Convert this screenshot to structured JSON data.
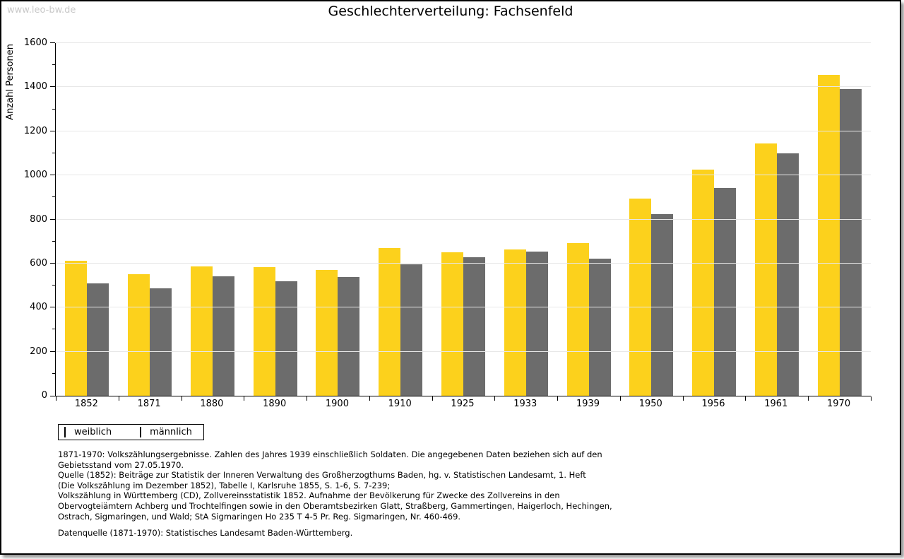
{
  "watermark": "www.leo-bw.de",
  "header": {
    "title": "Geschlechterverteilung: Fachsenfeld"
  },
  "chart_data": {
    "type": "bar",
    "title": "Geschlechterverteilung: Fachsenfeld",
    "xlabel": "",
    "ylabel": "Anzahl Personen",
    "categories": [
      "1852",
      "1871",
      "1880",
      "1890",
      "1900",
      "1910",
      "1925",
      "1933",
      "1939",
      "1950",
      "1956",
      "1961",
      "1970"
    ],
    "series": [
      {
        "name": "weiblich",
        "color": "#FCD11C",
        "values": [
          611,
          550,
          587,
          583,
          570,
          670,
          651,
          663,
          692,
          896,
          1026,
          1146,
          1456
        ]
      },
      {
        "name": "männlich",
        "color": "#6C6C6C",
        "values": [
          510,
          488,
          542,
          520,
          539,
          597,
          629,
          654,
          623,
          824,
          944,
          1101,
          1390
        ]
      }
    ],
    "ylim": [
      0,
      1600
    ],
    "ytick_major_step": 200,
    "ytick_minor_step": 100,
    "grid": "horizontal-major",
    "legend_position": "bottom-left"
  },
  "legend": {
    "items": [
      {
        "label": "weiblich",
        "color": "#FCD11C"
      },
      {
        "label": "männlich",
        "color": "#6C6C6C"
      }
    ]
  },
  "footer": {
    "lines": [
      "1871-1970: Volkszählungsergebnisse. Zahlen des Jahres 1939 einschließlich Soldaten. Die angegebenen Daten beziehen sich auf den",
      "Gebietsstand vom 27.05.1970.",
      "Quelle (1852): Beiträge zur Statistik der Inneren Verwaltung des Großherzogthums Baden, hg. v. Statistischen Landesamt, 1. Heft",
      "(Die Volkszählung im Dezember 1852), Tabelle I, Karlsruhe 1855, S. 1-6, S. 7-239;",
      "Volkszählung in Württemberg (CD), Zollvereinsstatistik 1852. Aufnahme der Bevölkerung für Zwecke des Zollvereins in den",
      "Obervogteiämtern Achberg und Trochtelfingen sowie in den Oberamtsbezirken Glatt, Straßberg, Gammertingen, Haigerloch, Hechingen,",
      "Ostrach, Sigmaringen, und Wald; StA Sigmaringen Ho 235 T 4-5 Pr. Reg. Sigmaringen, Nr. 460-469."
    ],
    "datasource": "Datenquelle (1871-1970): Statistisches Landesamt Baden-Württemberg."
  },
  "colors": {
    "weiblich": "#FCD11C",
    "maennlich": "#6C6C6C",
    "gridline": "#e7e7e7",
    "watermark": "#c9c9c9",
    "axis": "#000000"
  }
}
